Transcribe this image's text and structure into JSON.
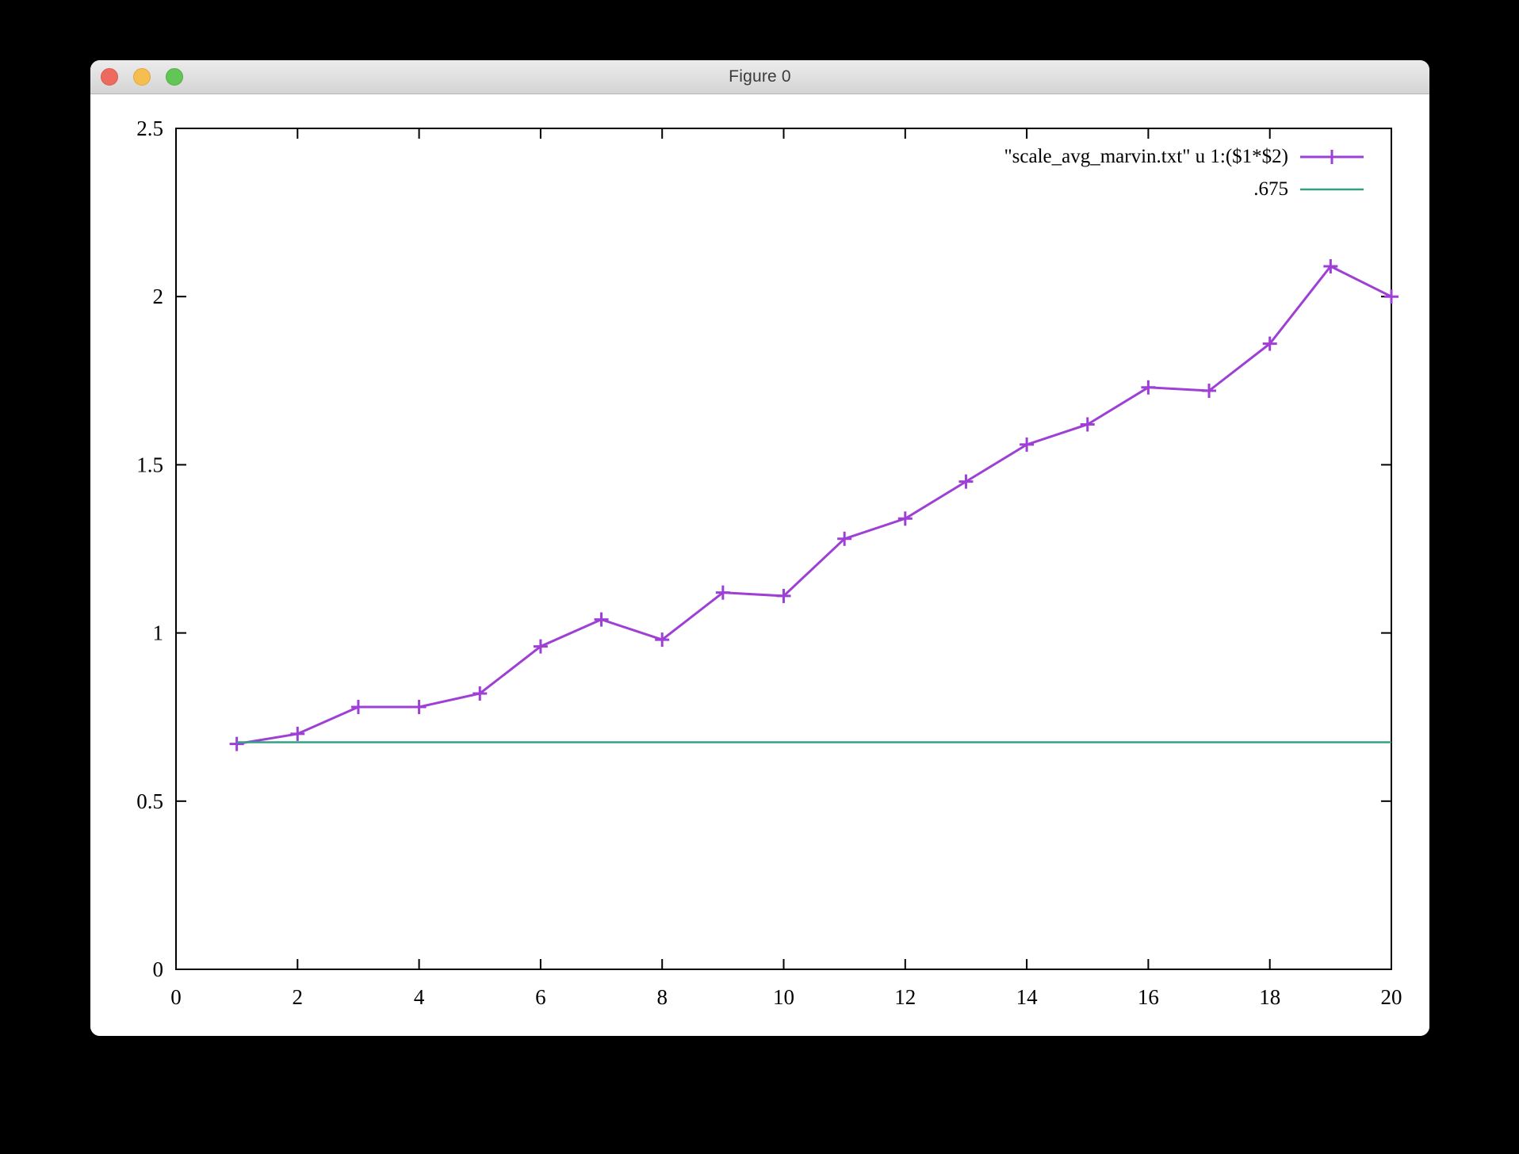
{
  "window": {
    "title": "Figure 0",
    "controls": {
      "close_color": "#ee6a5f",
      "minimize_color": "#f6be50",
      "zoom_color": "#62c656"
    }
  },
  "chart_data": {
    "type": "line",
    "title": "",
    "xlabel": "",
    "ylabel": "",
    "xlim": [
      0,
      20
    ],
    "ylim": [
      0,
      2.5
    ],
    "xticks": [
      0,
      2,
      4,
      6,
      8,
      10,
      12,
      14,
      16,
      18,
      20
    ],
    "xtick_labels": [
      "0",
      "2",
      "4",
      "6",
      "8",
      "10",
      "12",
      "14",
      "16",
      "18",
      "20"
    ],
    "yticks": [
      0,
      0.5,
      1,
      1.5,
      2,
      2.5
    ],
    "ytick_labels": [
      "0",
      "0.5",
      "1",
      "1.5",
      "2",
      "2.5"
    ],
    "grid": false,
    "legend_position": "top-right",
    "axis_color": "#000000",
    "x": [
      1,
      2,
      3,
      4,
      5,
      6,
      7,
      8,
      9,
      10,
      11,
      12,
      13,
      14,
      15,
      16,
      17,
      18,
      19,
      20
    ],
    "series": [
      {
        "name": "\"scale_avg_marvin.txt\" u 1:($1*$2)",
        "color": "#9e3fd5",
        "marker": "plus",
        "style": "linespoints",
        "values": [
          0.67,
          0.7,
          0.78,
          0.78,
          0.82,
          0.96,
          1.04,
          0.98,
          1.12,
          1.11,
          1.28,
          1.34,
          1.45,
          1.56,
          1.62,
          1.73,
          1.72,
          1.86,
          2.09,
          2.0
        ]
      },
      {
        "name": ".675",
        "color": "#35a183",
        "marker": "none",
        "style": "hline",
        "constant": 0.675,
        "x_start": 1,
        "x_end": 20
      }
    ]
  }
}
